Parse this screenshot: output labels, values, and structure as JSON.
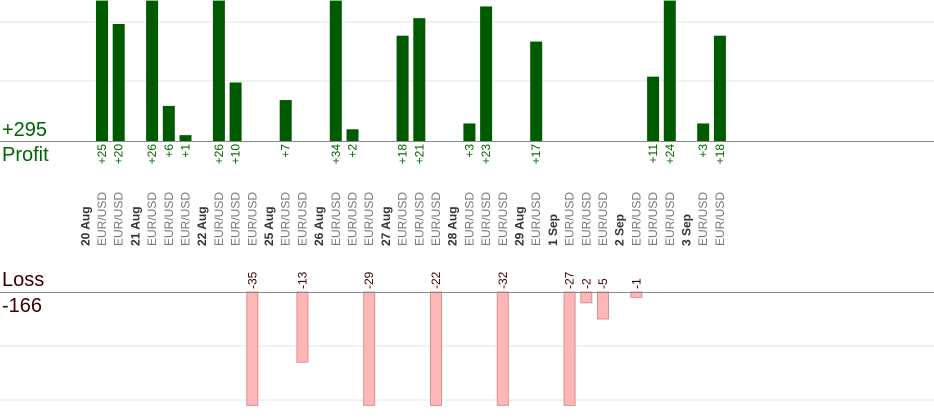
{
  "summary": {
    "profit_total": "+295",
    "profit_label": "Profit",
    "loss_label": "Loss",
    "loss_total": "-166"
  },
  "colors": {
    "profit_bar": "#005a00",
    "profit_text": "#006400",
    "loss_bar": "#ffb6b6",
    "loss_bar_stroke": "#e08f8f",
    "loss_text": "#3a0000",
    "grid": "#e6e6e6",
    "axis": "#888888",
    "instrument_text": "#777777",
    "date_text": "#333333"
  },
  "chart_data": {
    "type": "bar",
    "profit_axis_max": 24,
    "loss_axis_max": 21,
    "dates": [
      "20 Aug",
      "21 Aug",
      "22 Aug",
      "25 Aug",
      "26 Aug",
      "27 Aug",
      "28 Aug",
      "29 Aug",
      "1 Sep",
      "2 Sep",
      "3 Sep"
    ],
    "instrument": "EUR/USD",
    "trades": [
      {
        "date": "20 Aug",
        "profit": "+25",
        "value": 25
      },
      {
        "date": "20 Aug",
        "profit": "+20",
        "value": 20
      },
      {
        "date": "21 Aug",
        "profit": "+26",
        "value": 26
      },
      {
        "date": "21 Aug",
        "profit": "+6",
        "value": 6
      },
      {
        "date": "21 Aug",
        "profit": "+1",
        "value": 1
      },
      {
        "date": "22 Aug",
        "profit": "+26",
        "value": 26
      },
      {
        "date": "22 Aug",
        "profit": "+10",
        "value": 10
      },
      {
        "date": "22 Aug",
        "loss": "-35",
        "value": -35
      },
      {
        "date": "25 Aug",
        "profit": "+7",
        "value": 7
      },
      {
        "date": "25 Aug",
        "loss": "-13",
        "value": -13
      },
      {
        "date": "26 Aug",
        "profit": "+34",
        "value": 34
      },
      {
        "date": "26 Aug",
        "profit": "+2",
        "value": 2
      },
      {
        "date": "26 Aug",
        "loss": "-29",
        "value": -29
      },
      {
        "date": "27 Aug",
        "profit": "+18",
        "value": 18
      },
      {
        "date": "27 Aug",
        "profit": "+21",
        "value": 21
      },
      {
        "date": "27 Aug",
        "loss": "-22",
        "value": -22
      },
      {
        "date": "28 Aug",
        "profit": "+3",
        "value": 3
      },
      {
        "date": "28 Aug",
        "profit": "+23",
        "value": 23
      },
      {
        "date": "28 Aug",
        "loss": "-32",
        "value": -32
      },
      {
        "date": "29 Aug",
        "profit": "+17",
        "value": 17
      },
      {
        "date": "1 Sep",
        "loss": "-27",
        "value": -27
      },
      {
        "date": "1 Sep",
        "loss": "-2",
        "value": -2
      },
      {
        "date": "1 Sep",
        "loss": "-5",
        "value": -5
      },
      {
        "date": "2 Sep",
        "loss": "-1",
        "value": -1
      },
      {
        "date": "2 Sep",
        "profit": "+11",
        "value": 11
      },
      {
        "date": "2 Sep",
        "profit": "+24",
        "value": 24
      },
      {
        "date": "3 Sep",
        "profit": "+3",
        "value": 3
      },
      {
        "date": "3 Sep",
        "profit": "+18",
        "value": 18
      }
    ]
  }
}
